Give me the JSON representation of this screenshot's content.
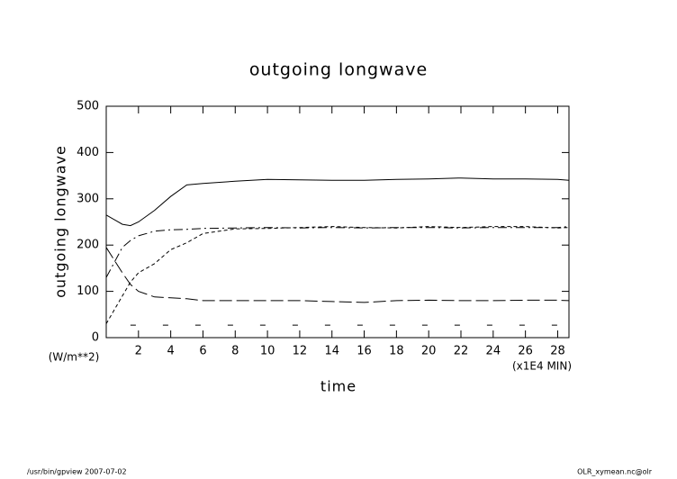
{
  "chart_data": {
    "type": "line",
    "title": "outgoing longwave",
    "y_label": "outgoing longwave",
    "y_unit": "(W/m**2)",
    "x_label": "time",
    "x_unit": "(x1E4 MIN)",
    "x": [
      0,
      1,
      1.5,
      2,
      3,
      4,
      5,
      6,
      8,
      10,
      12,
      14,
      16,
      18,
      20,
      22,
      24,
      26,
      28,
      28.7
    ],
    "series": [
      {
        "color": "#000000",
        "dash": "solid",
        "values": [
          265,
          245,
          242,
          250,
          275,
          305,
          330,
          333,
          338,
          342,
          341,
          340,
          340,
          342,
          343,
          345,
          343,
          343,
          342,
          340
        ]
      },
      {
        "color": "#000000",
        "dash": "dashdot",
        "values": [
          130,
          195,
          210,
          220,
          230,
          233,
          234,
          236,
          237,
          238,
          237,
          238,
          237,
          238,
          238,
          237,
          238,
          238,
          238,
          240
        ]
      },
      {
        "color": "#000000",
        "dash": "dashed",
        "values": [
          30,
          90,
          120,
          140,
          160,
          190,
          205,
          225,
          235,
          236,
          238,
          240,
          238,
          237,
          240,
          238,
          240,
          240,
          237,
          238
        ]
      },
      {
        "color": "#000000",
        "dash": "longdash",
        "values": [
          195,
          140,
          115,
          100,
          88,
          86,
          84,
          80,
          80,
          80,
          80,
          78,
          76,
          80,
          81,
          80,
          80,
          81,
          81,
          80
        ]
      },
      {
        "color": "#000000",
        "dash": "sparse",
        "values": [
          null,
          null,
          27,
          27,
          27,
          27,
          27,
          27,
          27,
          27,
          27,
          27,
          27,
          27,
          27,
          27,
          27,
          27,
          27,
          null
        ]
      }
    ],
    "xlim": [
      0,
      28.7
    ],
    "ylim": [
      0,
      500
    ],
    "xticks": [
      2,
      4,
      6,
      8,
      10,
      12,
      14,
      16,
      18,
      20,
      22,
      24,
      26,
      28
    ],
    "yticks": [
      0,
      100,
      200,
      300,
      400,
      500
    ],
    "grid": false
  },
  "footer": {
    "left": "/usr/bin/gpview  2007-07-02",
    "right": "OLR_xymean.nc@olr"
  }
}
